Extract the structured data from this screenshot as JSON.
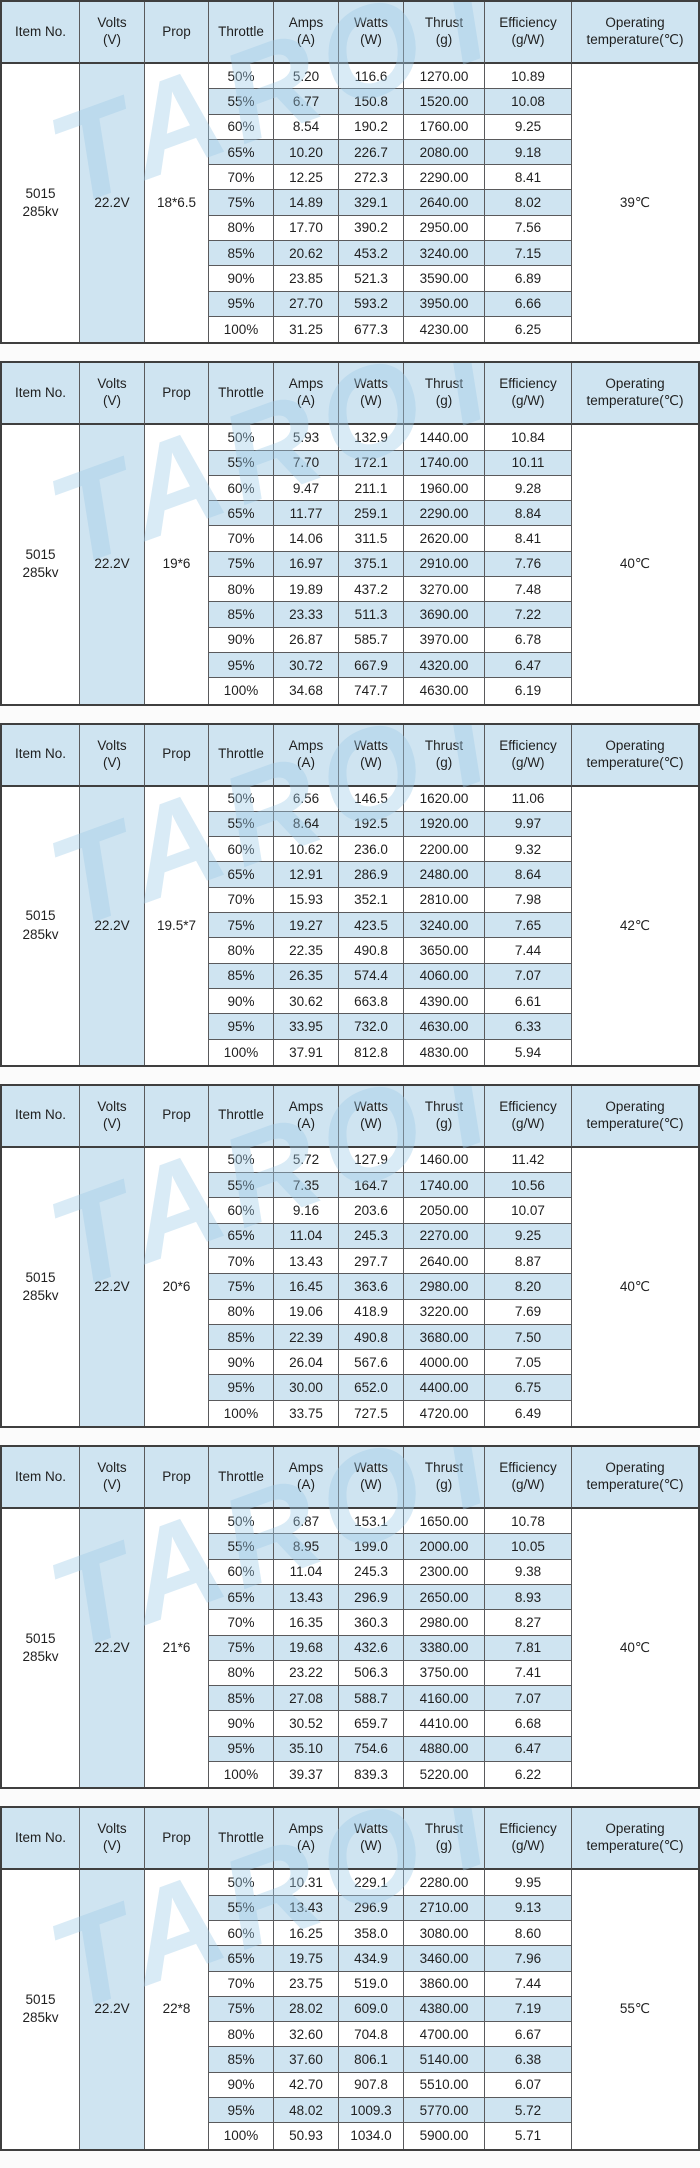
{
  "colors": {
    "stripe_blue": "#cfe4f1",
    "border_dark": "#3f3f3f",
    "border_cell": "#5a5a5c",
    "text": "#1f1f1f",
    "watermark_blue": "#9ecbe8",
    "page_background": "#fbfbfb"
  },
  "watermark_text": "TAROT",
  "header": {
    "item": "Item No.",
    "volts_1": "Volts",
    "volts_2": "(V)",
    "prop": "Prop",
    "throttle": "Throttle",
    "amps_1": "Amps",
    "amps_2": "(A)",
    "watts_1": "Watts",
    "watts_2": "(W)",
    "thrust_1": "Thrust",
    "thrust_2": "(g)",
    "eff_1": "Efficiency",
    "eff_2": "(g/W)",
    "temp_1": "Operating",
    "temp_2": "temperature(℃)"
  },
  "tables": [
    {
      "item_line1": "5015",
      "item_line2": "285kv",
      "volts": "22.2V",
      "prop": "18*6.5",
      "temp": "39℃",
      "rows": [
        [
          "50%",
          "5.20",
          "116.6",
          "1270.00",
          "10.89"
        ],
        [
          "55%",
          "6.77",
          "150.8",
          "1520.00",
          "10.08"
        ],
        [
          "60%",
          "8.54",
          "190.2",
          "1760.00",
          "9.25"
        ],
        [
          "65%",
          "10.20",
          "226.7",
          "2080.00",
          "9.18"
        ],
        [
          "70%",
          "12.25",
          "272.3",
          "2290.00",
          "8.41"
        ],
        [
          "75%",
          "14.89",
          "329.1",
          "2640.00",
          "8.02"
        ],
        [
          "80%",
          "17.70",
          "390.2",
          "2950.00",
          "7.56"
        ],
        [
          "85%",
          "20.62",
          "453.2",
          "3240.00",
          "7.15"
        ],
        [
          "90%",
          "23.85",
          "521.3",
          "3590.00",
          "6.89"
        ],
        [
          "95%",
          "27.70",
          "593.2",
          "3950.00",
          "6.66"
        ],
        [
          "100%",
          "31.25",
          "677.3",
          "4230.00",
          "6.25"
        ]
      ]
    },
    {
      "item_line1": "5015",
      "item_line2": "285kv",
      "volts": "22.2V",
      "prop": "19*6",
      "temp": "40℃",
      "rows": [
        [
          "50%",
          "5.93",
          "132.9",
          "1440.00",
          "10.84"
        ],
        [
          "55%",
          "7.70",
          "172.1",
          "1740.00",
          "10.11"
        ],
        [
          "60%",
          "9.47",
          "211.1",
          "1960.00",
          "9.28"
        ],
        [
          "65%",
          "11.77",
          "259.1",
          "2290.00",
          "8.84"
        ],
        [
          "70%",
          "14.06",
          "311.5",
          "2620.00",
          "8.41"
        ],
        [
          "75%",
          "16.97",
          "375.1",
          "2910.00",
          "7.76"
        ],
        [
          "80%",
          "19.89",
          "437.2",
          "3270.00",
          "7.48"
        ],
        [
          "85%",
          "23.33",
          "511.3",
          "3690.00",
          "7.22"
        ],
        [
          "90%",
          "26.87",
          "585.7",
          "3970.00",
          "6.78"
        ],
        [
          "95%",
          "30.72",
          "667.9",
          "4320.00",
          "6.47"
        ],
        [
          "100%",
          "34.68",
          "747.7",
          "4630.00",
          "6.19"
        ]
      ]
    },
    {
      "item_line1": "5015",
      "item_line2": "285kv",
      "volts": "22.2V",
      "prop": "19.5*7",
      "temp": "42℃",
      "rows": [
        [
          "50%",
          "6.56",
          "146.5",
          "1620.00",
          "11.06"
        ],
        [
          "55%",
          "8.64",
          "192.5",
          "1920.00",
          "9.97"
        ],
        [
          "60%",
          "10.62",
          "236.0",
          "2200.00",
          "9.32"
        ],
        [
          "65%",
          "12.91",
          "286.9",
          "2480.00",
          "8.64"
        ],
        [
          "70%",
          "15.93",
          "352.1",
          "2810.00",
          "7.98"
        ],
        [
          "75%",
          "19.27",
          "423.5",
          "3240.00",
          "7.65"
        ],
        [
          "80%",
          "22.35",
          "490.8",
          "3650.00",
          "7.44"
        ],
        [
          "85%",
          "26.35",
          "574.4",
          "4060.00",
          "7.07"
        ],
        [
          "90%",
          "30.62",
          "663.8",
          "4390.00",
          "6.61"
        ],
        [
          "95%",
          "33.95",
          "732.0",
          "4630.00",
          "6.33"
        ],
        [
          "100%",
          "37.91",
          "812.8",
          "4830.00",
          "5.94"
        ]
      ]
    },
    {
      "item_line1": "5015",
      "item_line2": "285kv",
      "volts": "22.2V",
      "prop": "20*6",
      "temp": "40℃",
      "rows": [
        [
          "50%",
          "5.72",
          "127.9",
          "1460.00",
          "11.42"
        ],
        [
          "55%",
          "7.35",
          "164.7",
          "1740.00",
          "10.56"
        ],
        [
          "60%",
          "9.16",
          "203.6",
          "2050.00",
          "10.07"
        ],
        [
          "65%",
          "11.04",
          "245.3",
          "2270.00",
          "9.25"
        ],
        [
          "70%",
          "13.43",
          "297.7",
          "2640.00",
          "8.87"
        ],
        [
          "75%",
          "16.45",
          "363.6",
          "2980.00",
          "8.20"
        ],
        [
          "80%",
          "19.06",
          "418.9",
          "3220.00",
          "7.69"
        ],
        [
          "85%",
          "22.39",
          "490.8",
          "3680.00",
          "7.50"
        ],
        [
          "90%",
          "26.04",
          "567.6",
          "4000.00",
          "7.05"
        ],
        [
          "95%",
          "30.00",
          "652.0",
          "4400.00",
          "6.75"
        ],
        [
          "100%",
          "33.75",
          "727.5",
          "4720.00",
          "6.49"
        ]
      ]
    },
    {
      "item_line1": "5015",
      "item_line2": "285kv",
      "volts": "22.2V",
      "prop": "21*6",
      "temp": "40℃",
      "rows": [
        [
          "50%",
          "6.87",
          "153.1",
          "1650.00",
          "10.78"
        ],
        [
          "55%",
          "8.95",
          "199.0",
          "2000.00",
          "10.05"
        ],
        [
          "60%",
          "11.04",
          "245.3",
          "2300.00",
          "9.38"
        ],
        [
          "65%",
          "13.43",
          "296.9",
          "2650.00",
          "8.93"
        ],
        [
          "70%",
          "16.35",
          "360.3",
          "2980.00",
          "8.27"
        ],
        [
          "75%",
          "19.68",
          "432.6",
          "3380.00",
          "7.81"
        ],
        [
          "80%",
          "23.22",
          "506.3",
          "3750.00",
          "7.41"
        ],
        [
          "85%",
          "27.08",
          "588.7",
          "4160.00",
          "7.07"
        ],
        [
          "90%",
          "30.52",
          "659.7",
          "4410.00",
          "6.68"
        ],
        [
          "95%",
          "35.10",
          "754.6",
          "4880.00",
          "6.47"
        ],
        [
          "100%",
          "39.37",
          "839.3",
          "5220.00",
          "6.22"
        ]
      ]
    },
    {
      "item_line1": "5015",
      "item_line2": "285kv",
      "volts": "22.2V",
      "prop": "22*8",
      "temp": "55℃",
      "rows": [
        [
          "50%",
          "10.31",
          "229.1",
          "2280.00",
          "9.95"
        ],
        [
          "55%",
          "13.43",
          "296.9",
          "2710.00",
          "9.13"
        ],
        [
          "60%",
          "16.25",
          "358.0",
          "3080.00",
          "8.60"
        ],
        [
          "65%",
          "19.75",
          "434.9",
          "3460.00",
          "7.96"
        ],
        [
          "70%",
          "23.75",
          "519.0",
          "3860.00",
          "7.44"
        ],
        [
          "75%",
          "28.02",
          "609.0",
          "4380.00",
          "7.19"
        ],
        [
          "80%",
          "32.60",
          "704.8",
          "4700.00",
          "6.67"
        ],
        [
          "85%",
          "37.60",
          "806.1",
          "5140.00",
          "6.38"
        ],
        [
          "90%",
          "42.70",
          "907.8",
          "5510.00",
          "6.07"
        ],
        [
          "95%",
          "48.02",
          "1009.3",
          "5770.00",
          "5.72"
        ],
        [
          "100%",
          "50.93",
          "1034.0",
          "5900.00",
          "5.71"
        ]
      ]
    }
  ]
}
